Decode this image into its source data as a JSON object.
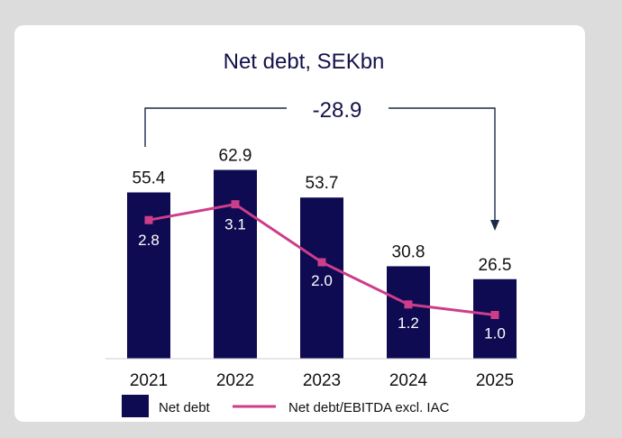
{
  "chart_data": {
    "type": "bar",
    "title": "Net debt, SEKbn",
    "categories": [
      "2021",
      "2022",
      "2023",
      "2024",
      "2025"
    ],
    "series": [
      {
        "name": "Net debt",
        "type": "bar",
        "values": [
          55.4,
          62.9,
          53.7,
          30.8,
          26.5
        ]
      },
      {
        "name": "Net debt/EBITDA excl. IAC",
        "type": "line",
        "values": [
          2.8,
          3.1,
          2.0,
          1.2,
          1.0
        ]
      }
    ],
    "annotation": "-28.9",
    "colors": {
      "bar": "#0f0b52",
      "line": "#cc3d8a",
      "arrow": "#1c2a4a"
    }
  }
}
